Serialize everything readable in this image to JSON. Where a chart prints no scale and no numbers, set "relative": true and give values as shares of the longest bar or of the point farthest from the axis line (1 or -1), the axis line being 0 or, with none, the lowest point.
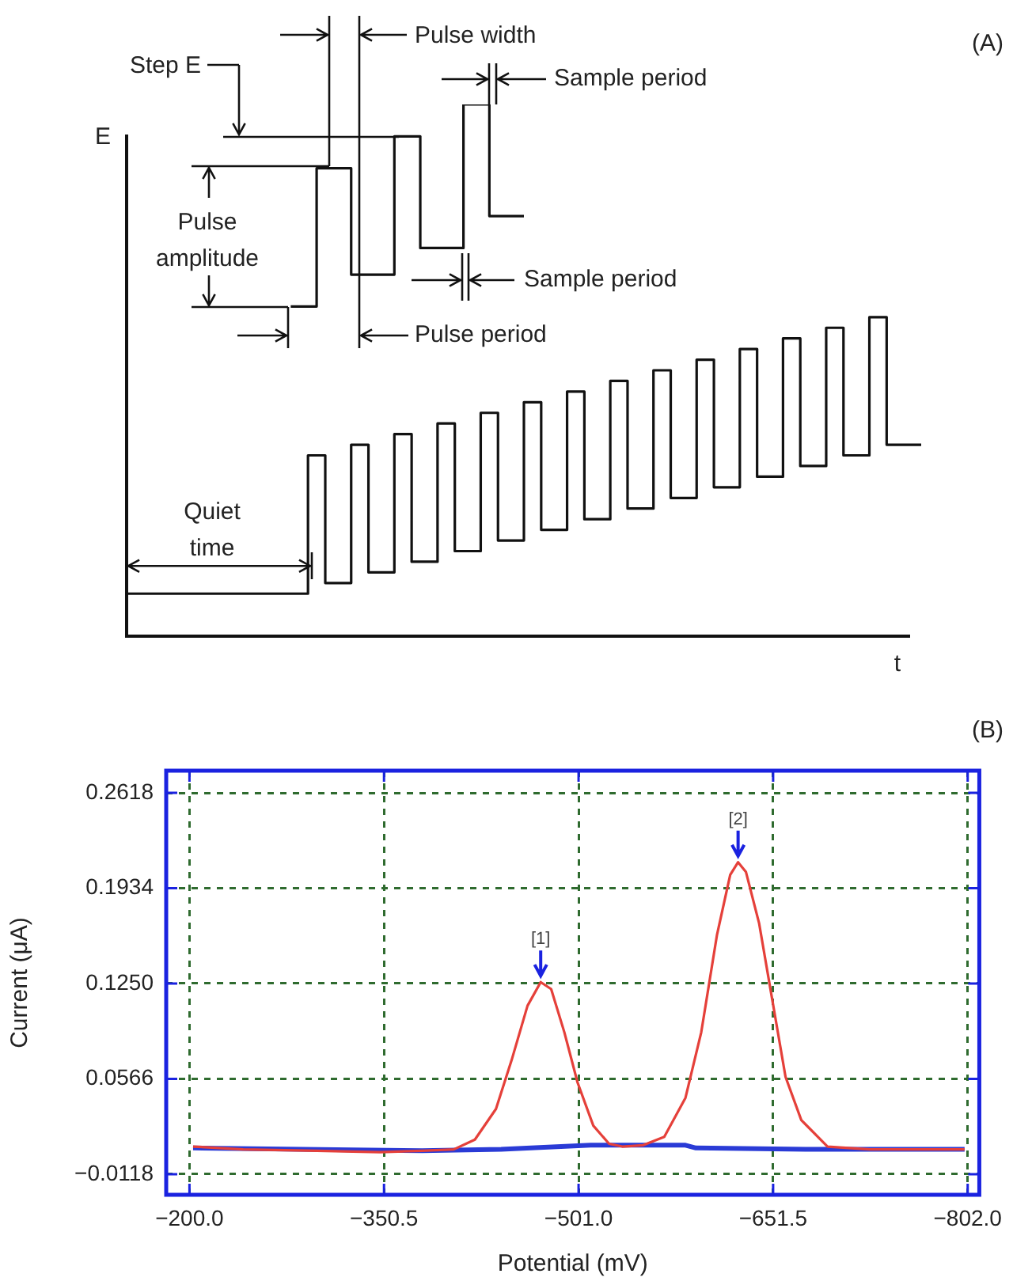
{
  "chart_data": [
    {
      "type": "step",
      "relative": true,
      "xlabel": "t",
      "ylabel": "E",
      "tick_labels": false,
      "legend": false,
      "marker": "none",
      "categories": [
        null,
        null,
        null,
        null,
        null,
        null,
        null,
        null,
        null,
        null,
        null,
        null,
        null,
        null,
        null,
        null,
        null,
        null,
        null,
        null,
        null,
        null,
        null,
        null,
        null,
        null,
        null,
        null,
        null,
        null,
        null,
        null,
        null,
        null,
        null,
        null,
        null,
        null,
        null,
        null,
        null,
        null,
        null,
        null,
        null,
        null,
        null,
        null,
        null,
        null,
        null,
        null,
        null,
        null,
        null,
        null,
        null,
        null,
        null,
        null,
        null,
        null,
        null,
        null,
        null,
        null,
        null,
        null,
        null,
        null,
        null,
        null,
        null,
        null,
        null,
        null,
        null,
        null,
        null,
        null,
        null,
        null,
        null,
        null,
        null,
        null,
        null,
        null,
        null,
        null,
        null,
        null,
        null
      ],
      "annotations": [
        "(A)",
        "Step E",
        "Pulse width",
        "Sample period",
        "Pulse amplitude",
        "Sample period",
        "Pulse period",
        "Quiet time"
      ],
      "series": [
        {
          "color": "#111111",
          "values": [
            0.08,
            0.08,
            0.08,
            0.08,
            0.08,
            0.08,
            0.08,
            0.08,
            0.08,
            0.08,
            0.08,
            0.08,
            0.08,
            0.08,
            0.08,
            0.08,
            0.08,
            0.08,
            0.08,
            0.08,
            0.08,
            0.08,
            0.34,
            0.34,
            0.1,
            0.1,
            0.1,
            0.36,
            0.36,
            0.12,
            0.12,
            0.12,
            0.38,
            0.38,
            0.14,
            0.14,
            0.14,
            0.4,
            0.4,
            0.16,
            0.16,
            0.16,
            0.42,
            0.42,
            0.18,
            0.18,
            0.18,
            0.44,
            0.44,
            0.2,
            0.2,
            0.2,
            0.46,
            0.46,
            0.22,
            0.22,
            0.22,
            0.48,
            0.48,
            0.24,
            0.24,
            0.24,
            0.5,
            0.5,
            0.26,
            0.26,
            0.26,
            0.52,
            0.52,
            0.28,
            0.28,
            0.28,
            0.54,
            0.54,
            0.3,
            0.3,
            0.3,
            0.56,
            0.56,
            0.32,
            0.32,
            0.32,
            0.58,
            0.58,
            0.34,
            0.34,
            0.34,
            0.6,
            0.6,
            0.36,
            0.36,
            0.36,
            0.36
          ]
        },
        {
          "color": "#111111",
          "values": [
            null,
            null,
            null,
            null,
            null,
            null,
            null,
            null,
            null,
            null,
            null,
            null,
            null,
            null,
            null,
            null,
            null,
            null,
            null,
            0.62,
            0.62,
            0.62,
            0.62,
            0.88,
            0.88,
            0.88,
            0.88,
            0.68,
            0.68,
            0.68,
            0.68,
            0.68,
            0.94,
            0.94,
            0.94,
            0.73,
            0.73,
            0.73,
            0.73,
            0.73,
            1,
            1,
            1,
            0.79,
            0.79,
            0.79,
            0.79,
            null,
            null,
            null,
            null,
            null,
            null,
            null,
            null,
            null,
            null,
            null,
            null,
            null,
            null,
            null,
            null,
            null,
            null,
            null,
            null,
            null,
            null,
            null,
            null,
            null,
            null,
            null,
            null,
            null,
            null,
            null,
            null,
            null,
            null,
            null,
            null,
            null,
            null,
            null,
            null,
            null,
            null,
            null,
            null,
            null,
            null
          ]
        }
      ]
    },
    {
      "type": "line",
      "xlabel": "Potential (mV)",
      "ylabel": "Current (μA)",
      "grid": true,
      "legend": false,
      "marker": "none",
      "xlim": [
        -182,
        -811
      ],
      "ylim": [
        -0.0266,
        0.2777
      ],
      "xticks": [
        {
          "value": -200,
          "label": "−200.0"
        },
        {
          "value": -350.5,
          "label": "−350.5"
        },
        {
          "value": -501,
          "label": "−501.0"
        },
        {
          "value": -651.5,
          "label": "−651.5"
        },
        {
          "value": -802,
          "label": "−802.0"
        }
      ],
      "yticks": [
        {
          "value": -0.0118,
          "label": "−0.0118"
        },
        {
          "value": 0.0566,
          "label": "0.0566"
        },
        {
          "value": 0.125,
          "label": "0.1250"
        },
        {
          "value": 0.1934,
          "label": "0.1934"
        },
        {
          "value": 0.2618,
          "label": "0.2618"
        }
      ],
      "annotations": [
        "(B)",
        {
          "text": "[1]",
          "x": -471.7,
          "y": 0.126
        },
        {
          "text": "[2]",
          "x": -624.4,
          "y": 0.212
        }
      ],
      "series": [
        {
          "color": "#2a3bd6",
          "x": [
            -202.8,
            -380,
            -441.1,
            -510.4,
            -583.7,
            -591.8,
            -685.5,
            -799.6
          ],
          "values": [
            0.007,
            0.005,
            0.006,
            0.009,
            0.009,
            0.007,
            0.006,
            0.006
          ]
        },
        {
          "color": "#e5403a",
          "x": [
            -202.8,
            -241.6,
            -298.5,
            -347.4,
            -380,
            -404.5,
            -420.8,
            -437.1,
            -449.2,
            -461.5,
            -471.7,
            -479.8,
            -490,
            -500.2,
            -512.4,
            -524.6,
            -534.8,
            -551,
            -567.3,
            -583.7,
            -595.9,
            -608.1,
            -618.3,
            -624.4,
            -630.5,
            -640.7,
            -650.9,
            -661.1,
            -673.3,
            -693.6,
            -726.2,
            -767,
            -799.6
          ],
          "values": [
            0.008,
            0.006,
            0.005,
            0.004,
            0.005,
            0.006,
            0.013,
            0.035,
            0.07,
            0.109,
            0.126,
            0.121,
            0.09,
            0.054,
            0.023,
            0.01,
            0.008,
            0.009,
            0.015,
            0.043,
            0.09,
            0.16,
            0.203,
            0.212,
            0.205,
            0.168,
            0.113,
            0.058,
            0.027,
            0.008,
            0.006,
            0.006,
            0.006
          ]
        }
      ]
    }
  ]
}
